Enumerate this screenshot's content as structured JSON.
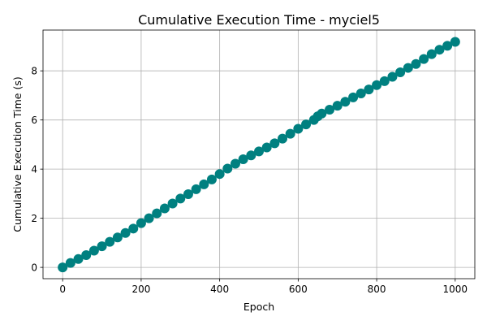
{
  "chart_data": {
    "type": "scatter",
    "title": "Cumulative Execution Time - myciel5",
    "xlabel": "Epoch",
    "ylabel": "Cumulative Execution Time (s)",
    "xlim": [
      -50,
      1050
    ],
    "ylim": [
      -0.46,
      9.66
    ],
    "xticks": [
      0,
      200,
      400,
      600,
      800,
      1000
    ],
    "yticks": [
      0,
      2,
      4,
      6,
      8
    ],
    "grid": true,
    "legend": "none",
    "marker_color": "#008080",
    "series": [
      {
        "x": [
          0,
          20,
          40,
          60,
          80,
          100,
          120,
          140,
          160,
          180,
          200,
          220,
          240,
          260,
          280,
          300,
          320,
          340,
          360,
          380,
          400,
          420,
          440,
          460,
          480,
          500,
          520,
          540,
          560,
          580,
          600,
          620,
          640,
          650,
          660,
          680,
          700,
          720,
          740,
          760,
          780,
          800,
          820,
          840,
          860,
          880,
          900,
          920,
          940,
          960,
          980,
          1000
        ],
        "y": [
          0.0,
          0.18,
          0.34,
          0.5,
          0.68,
          0.86,
          1.04,
          1.22,
          1.4,
          1.58,
          1.8,
          2.0,
          2.2,
          2.4,
          2.6,
          2.8,
          2.98,
          3.18,
          3.38,
          3.58,
          3.8,
          4.02,
          4.22,
          4.4,
          4.56,
          4.72,
          4.88,
          5.05,
          5.24,
          5.44,
          5.64,
          5.82,
          6.0,
          6.15,
          6.26,
          6.42,
          6.58,
          6.74,
          6.92,
          7.08,
          7.24,
          7.42,
          7.58,
          7.76,
          7.94,
          8.12,
          8.28,
          8.48,
          8.68,
          8.86,
          9.02,
          9.18
        ]
      }
    ]
  }
}
